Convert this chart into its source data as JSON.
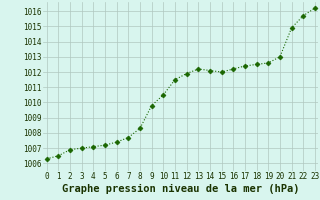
{
  "x": [
    0,
    1,
    2,
    3,
    4,
    5,
    6,
    7,
    8,
    9,
    10,
    11,
    12,
    13,
    14,
    15,
    16,
    17,
    18,
    19,
    20,
    21,
    22,
    23
  ],
  "y": [
    1006.3,
    1006.5,
    1006.9,
    1007.0,
    1007.1,
    1007.2,
    1007.4,
    1007.7,
    1008.3,
    1009.8,
    1010.5,
    1011.5,
    1011.9,
    1012.2,
    1012.1,
    1012.0,
    1012.2,
    1012.4,
    1012.5,
    1012.6,
    1013.0,
    1014.9,
    1015.7,
    1016.2
  ],
  "line_color": "#1a6600",
  "marker": "D",
  "marker_size": 2.5,
  "line_width": 0.8,
  "bg_color": "#d8f5ee",
  "grid_color": "#b0c8c0",
  "xlabel": "Graphe pression niveau de la mer (hPa)",
  "ylabel": "",
  "ylim": [
    1005.5,
    1016.6
  ],
  "xlim": [
    -0.3,
    23.3
  ],
  "yticks": [
    1006,
    1007,
    1008,
    1009,
    1010,
    1011,
    1012,
    1013,
    1014,
    1015,
    1016
  ],
  "xticks": [
    0,
    1,
    2,
    3,
    4,
    5,
    6,
    7,
    8,
    9,
    10,
    11,
    12,
    13,
    14,
    15,
    16,
    17,
    18,
    19,
    20,
    21,
    22,
    23
  ],
  "tick_fontsize": 5.5,
  "xlabel_fontsize": 7.5,
  "label_color": "#1a3300"
}
